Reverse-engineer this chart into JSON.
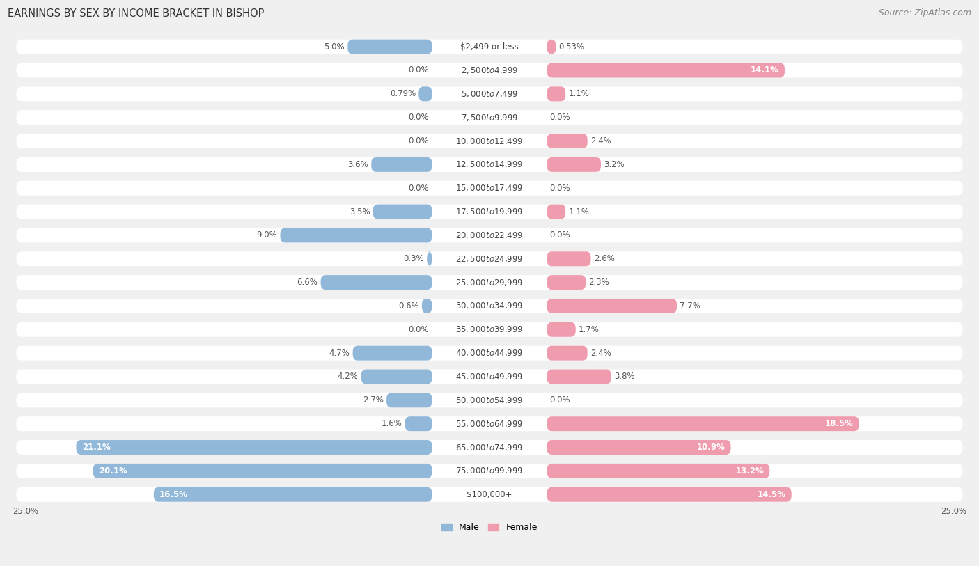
{
  "title": "EARNINGS BY SEX BY INCOME BRACKET IN BISHOP",
  "source": "Source: ZipAtlas.com",
  "categories": [
    "$2,499 or less",
    "$2,500 to $4,999",
    "$5,000 to $7,499",
    "$7,500 to $9,999",
    "$10,000 to $12,499",
    "$12,500 to $14,999",
    "$15,000 to $17,499",
    "$17,500 to $19,999",
    "$20,000 to $22,499",
    "$22,500 to $24,999",
    "$25,000 to $29,999",
    "$30,000 to $34,999",
    "$35,000 to $39,999",
    "$40,000 to $44,999",
    "$45,000 to $49,999",
    "$50,000 to $54,999",
    "$55,000 to $64,999",
    "$65,000 to $74,999",
    "$75,000 to $99,999",
    "$100,000+"
  ],
  "male_values": [
    5.0,
    0.0,
    0.79,
    0.0,
    0.0,
    3.6,
    0.0,
    3.5,
    9.0,
    0.3,
    6.6,
    0.6,
    0.0,
    4.7,
    4.2,
    2.7,
    1.6,
    21.1,
    20.1,
    16.5
  ],
  "female_values": [
    0.53,
    14.1,
    1.1,
    0.0,
    2.4,
    3.2,
    0.0,
    1.1,
    0.0,
    2.6,
    2.3,
    7.7,
    1.7,
    2.4,
    3.8,
    0.0,
    18.5,
    10.9,
    13.2,
    14.5
  ],
  "male_color": "#91b8d9",
  "female_color": "#f09caf",
  "male_label": "Male",
  "female_label": "Female",
  "xlim": 25.0,
  "row_bg_color": "#f0f0f0",
  "bar_bg_color": "#ffffff",
  "label_bg_color": "#ffffff",
  "title_fontsize": 10.5,
  "source_fontsize": 9,
  "value_fontsize": 8.5,
  "cat_fontsize": 8.5,
  "legend_fontsize": 9
}
